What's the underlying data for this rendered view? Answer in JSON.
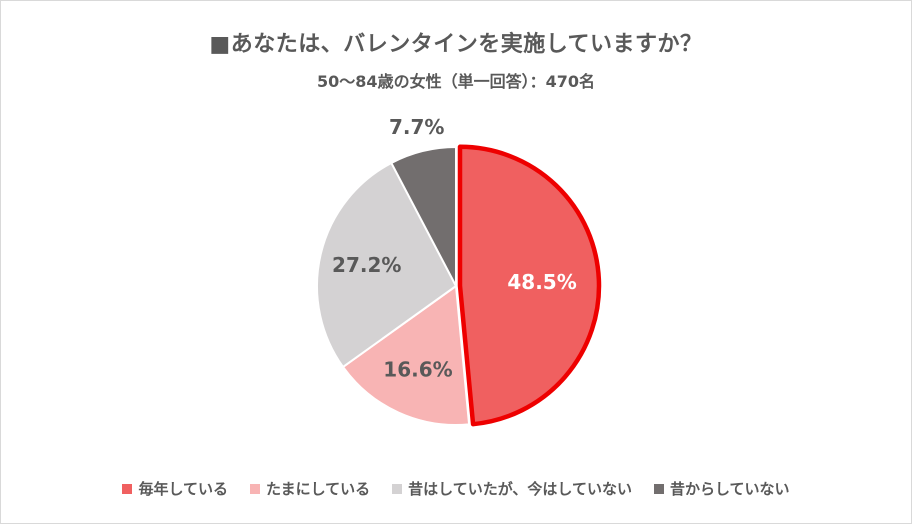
{
  "chart_data": {
    "type": "pie",
    "title": "■あなたは、バレンタインを実施していますか？",
    "subtitle": "50〜84歳の女性（単一回答）：470名",
    "slices": [
      {
        "label": "毎年している",
        "value": 48.5,
        "display": "48.5%",
        "color": "#f06060",
        "highlight": true
      },
      {
        "label": "たまにしている",
        "value": 16.6,
        "display": "16.6%",
        "color": "#f8b4b4",
        "highlight": false
      },
      {
        "label": "昔はしていたが、今はしていない",
        "value": 27.2,
        "display": "27.2%",
        "color": "#d4d2d3",
        "highlight": false
      },
      {
        "label": "昔からしていない",
        "value": 7.7,
        "display": "7.7%",
        "color": "#726e6e",
        "highlight": false
      }
    ],
    "legend_position": "bottom",
    "highlight_color": "#ee0000"
  }
}
